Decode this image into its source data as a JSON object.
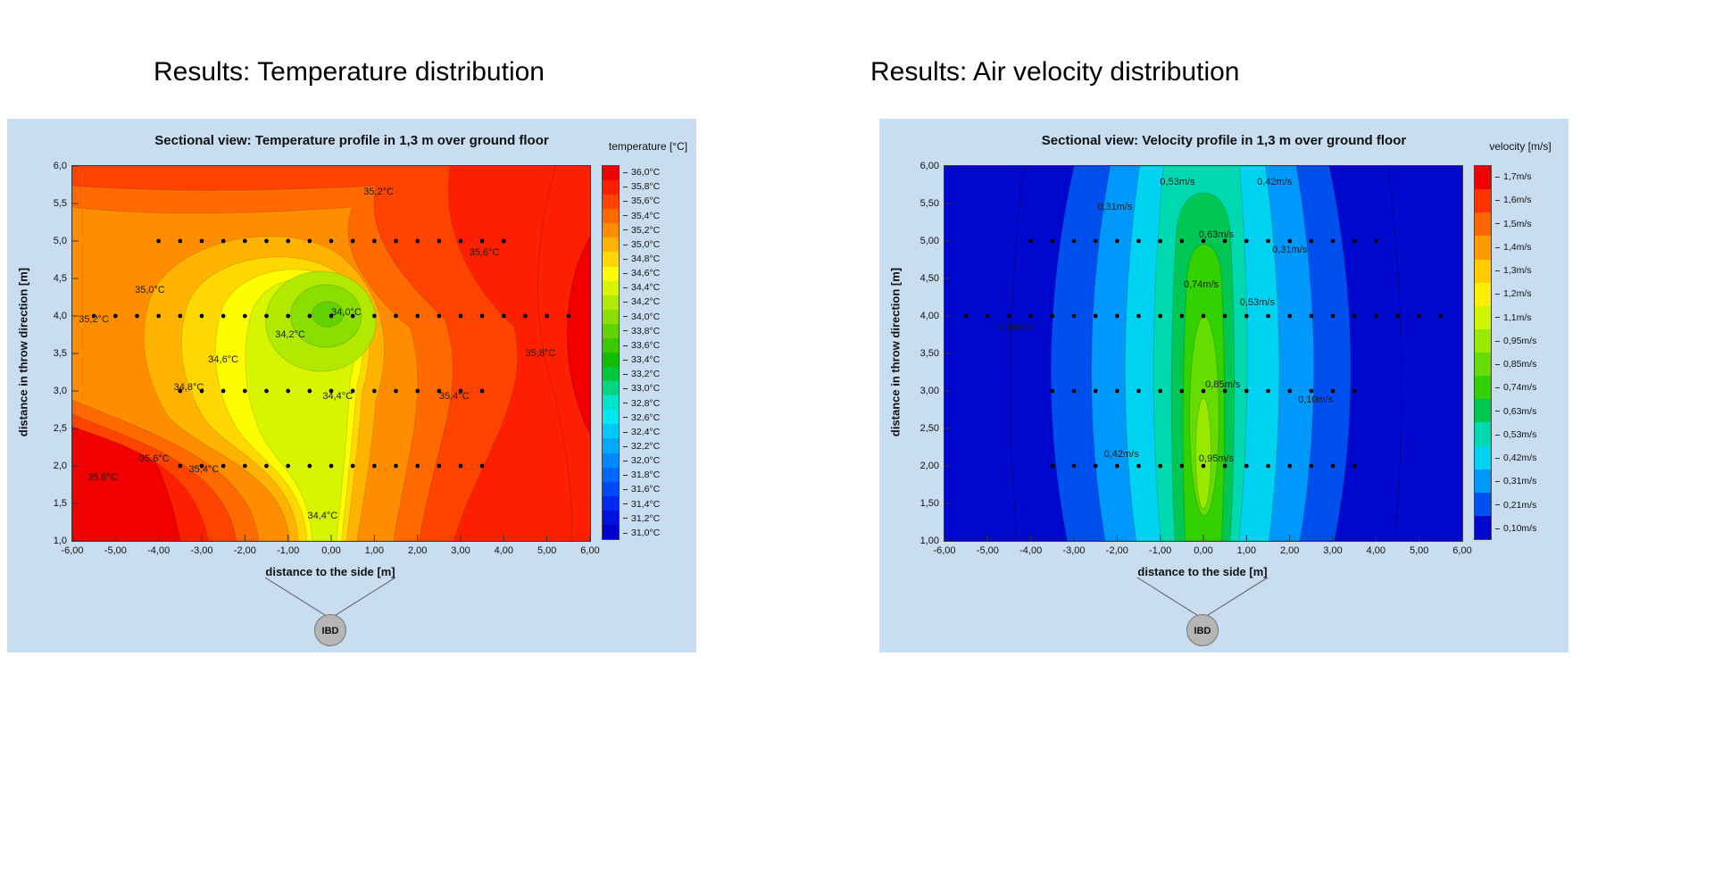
{
  "page": {
    "background": "#ffffff",
    "panel_background": "#c9ddf0"
  },
  "chart_data": [
    {
      "id": "temperature",
      "type": "contour",
      "heading": "Results: Temperature distribution",
      "title": "Sectional view: Temperature profile in 1,3 m over ground floor",
      "xlabel": "distance to the side [m]",
      "ylabel": "distance in throw direction [m]",
      "xlim": [
        -6,
        6
      ],
      "ylim": [
        1,
        6
      ],
      "x_ticks": [
        "-6,00",
        "-5,00",
        "-4,00",
        "-3,00",
        "-2,00",
        "-1,00",
        "0,00",
        "1,00",
        "2,00",
        "3,00",
        "4,00",
        "5,00",
        "6,00"
      ],
      "y_ticks": [
        "6,0",
        "5,5",
        "5,0",
        "4,5",
        "4,0",
        "3,5",
        "3,0",
        "2,5",
        "2,0",
        "1,5",
        "1,0"
      ],
      "ibd_label": "IBD",
      "colorbar": {
        "title": "temperature [°C]",
        "levels": [
          {
            "label": "36,0°C",
            "color": "#f10000"
          },
          {
            "label": "35,8°C",
            "color": "#fe1e00"
          },
          {
            "label": "35,6°C",
            "color": "#fe4300"
          },
          {
            "label": "35,4°C",
            "color": "#fe6900"
          },
          {
            "label": "35,2°C",
            "color": "#fe8e00"
          },
          {
            "label": "35,0°C",
            "color": "#feb300"
          },
          {
            "label": "34,8°C",
            "color": "#fed800"
          },
          {
            "label": "34,6°C",
            "color": "#fdfd00"
          },
          {
            "label": "34,4°C",
            "color": "#d8f500"
          },
          {
            "label": "34,2°C",
            "color": "#b1ea00"
          },
          {
            "label": "34,0°C",
            "color": "#8ade00"
          },
          {
            "label": "33,8°C",
            "color": "#63d300"
          },
          {
            "label": "33,6°C",
            "color": "#3cc800"
          },
          {
            "label": "33,4°C",
            "color": "#15bd00"
          },
          {
            "label": "33,2°C",
            "color": "#00c83e"
          },
          {
            "label": "33,0°C",
            "color": "#00d684"
          },
          {
            "label": "32,8°C",
            "color": "#00e4ca"
          },
          {
            "label": "32,6°C",
            "color": "#00e9f2"
          },
          {
            "label": "32,4°C",
            "color": "#00c9f6"
          },
          {
            "label": "32,2°C",
            "color": "#00a8fa"
          },
          {
            "label": "32,0°C",
            "color": "#0088fe"
          },
          {
            "label": "31,8°C",
            "color": "#0068fe"
          },
          {
            "label": "31,6°C",
            "color": "#0048fa"
          },
          {
            "label": "31,4°C",
            "color": "#0028f0"
          },
          {
            "label": "31,2°C",
            "color": "#0010e0"
          },
          {
            "label": "31,0°C",
            "color": "#0000cd"
          }
        ]
      },
      "contour_labels": [
        {
          "text": "35,2°C",
          "x": 1.1,
          "y": 5.65
        },
        {
          "text": "35,6°C",
          "x": 3.55,
          "y": 4.85
        },
        {
          "text": "35,0°C",
          "x": -4.2,
          "y": 4.35
        },
        {
          "text": "35,2°C",
          "x": -5.5,
          "y": 3.95
        },
        {
          "text": "34,0°C",
          "x": 0.35,
          "y": 4.05
        },
        {
          "text": "34,2°C",
          "x": -0.95,
          "y": 3.75
        },
        {
          "text": "34,6°C",
          "x": -2.5,
          "y": 3.42
        },
        {
          "text": "34,8°C",
          "x": -3.3,
          "y": 3.05
        },
        {
          "text": "34,4°C",
          "x": 0.15,
          "y": 2.93
        },
        {
          "text": "35,4°C",
          "x": 2.85,
          "y": 2.93
        },
        {
          "text": "35,8°C",
          "x": 4.85,
          "y": 3.5
        },
        {
          "text": "35,8°C",
          "x": -5.3,
          "y": 1.85
        },
        {
          "text": "35,6°C",
          "x": -4.1,
          "y": 2.1
        },
        {
          "text": "35,4°C",
          "x": -2.95,
          "y": 1.95
        },
        {
          "text": "34,4°C",
          "x": -0.2,
          "y": 1.33
        }
      ],
      "measurement_points": [
        {
          "y": 5.0,
          "x": [
            -4,
            -3.5,
            -3,
            -2.5,
            -2,
            -1.5,
            -1,
            -0.5,
            0,
            0.5,
            1,
            1.5,
            2,
            2.5,
            3,
            3.5,
            4
          ]
        },
        {
          "y": 4.0,
          "x": [
            -5.5,
            -5,
            -4.5,
            -4,
            -3.5,
            -3,
            -2.5,
            -2,
            -1.5,
            -1,
            -0.5,
            0,
            0.5,
            1,
            1.5,
            2,
            2.5,
            3,
            3.5,
            4,
            4.5,
            5,
            5.5
          ]
        },
        {
          "y": 3.0,
          "x": [
            -3.5,
            -3,
            -2.5,
            -2,
            -1.5,
            -1,
            -0.5,
            0,
            0.5,
            1,
            1.5,
            2,
            2.5,
            3,
            3.5
          ]
        },
        {
          "y": 2.0,
          "x": [
            -3.5,
            -3,
            -2.5,
            -2,
            -1.5,
            -1,
            -0.5,
            0,
            0.5,
            1,
            1.5,
            2,
            2.5,
            3,
            3.5
          ]
        }
      ]
    },
    {
      "id": "velocity",
      "type": "contour",
      "heading": "Results: Air velocity distribution",
      "title": "Sectional view: Velocity profile in 1,3 m over ground floor",
      "xlabel": "distance to the side [m]",
      "ylabel": "distance in throw direction [m]",
      "xlim": [
        -6,
        6
      ],
      "ylim": [
        1,
        6
      ],
      "x_ticks": [
        "-6,00",
        "-5,00",
        "-4,00",
        "-3,00",
        "-2,00",
        "-1,00",
        "0,00",
        "1,00",
        "2,00",
        "3,00",
        "4,00",
        "5,00",
        "6,00"
      ],
      "y_ticks": [
        "6,00",
        "5,50",
        "5,00",
        "4,50",
        "4,00",
        "3,50",
        "3,00",
        "2,50",
        "2,00",
        "1,50",
        "1,00"
      ],
      "ibd_label": "IBD",
      "colorbar": {
        "title": "velocity [m/s]",
        "levels": [
          {
            "label": "1,7m/s",
            "color": "#f10000"
          },
          {
            "label": "1,6m/s",
            "color": "#fe3300"
          },
          {
            "label": "1,5m/s",
            "color": "#fe6600"
          },
          {
            "label": "1,4m/s",
            "color": "#fe9900"
          },
          {
            "label": "1,3m/s",
            "color": "#fecc00"
          },
          {
            "label": "1,2m/s",
            "color": "#feee00"
          },
          {
            "label": "1,1m/s",
            "color": "#ccf500"
          },
          {
            "label": "0,95m/s",
            "color": "#99e800"
          },
          {
            "label": "0,85m/s",
            "color": "#66dd00"
          },
          {
            "label": "0,74m/s",
            "color": "#33d100"
          },
          {
            "label": "0,63m/s",
            "color": "#00c654"
          },
          {
            "label": "0,53m/s",
            "color": "#00d8b0"
          },
          {
            "label": "0,42m/s",
            "color": "#00d2f2"
          },
          {
            "label": "0,31m/s",
            "color": "#0098fa"
          },
          {
            "label": "0,21m/s",
            "color": "#0050f0"
          },
          {
            "label": "0,10m/s",
            "color": "#0008cd"
          }
        ]
      },
      "contour_labels": [
        {
          "text": "0,53m/s",
          "x": -0.6,
          "y": 5.78
        },
        {
          "text": "0,42m/s",
          "x": 1.65,
          "y": 5.78
        },
        {
          "text": "0,31m/s",
          "x": -2.05,
          "y": 5.45
        },
        {
          "text": "0,63m/s",
          "x": 0.3,
          "y": 5.08
        },
        {
          "text": "0,31m/s",
          "x": 2.0,
          "y": 4.88
        },
        {
          "text": "0,74m/s",
          "x": -0.05,
          "y": 4.42
        },
        {
          "text": "0,53m/s",
          "x": 1.25,
          "y": 4.18
        },
        {
          "text": "0,10m/s",
          "x": -4.35,
          "y": 3.85
        },
        {
          "text": "0,85m/s",
          "x": 0.45,
          "y": 3.08
        },
        {
          "text": "0,10m/s",
          "x": 2.6,
          "y": 2.88
        },
        {
          "text": "0,42m/s",
          "x": -1.9,
          "y": 2.15
        },
        {
          "text": "0,95m/s",
          "x": 0.3,
          "y": 2.1
        }
      ],
      "measurement_points": [
        {
          "y": 5.0,
          "x": [
            -4,
            -3.5,
            -3,
            -2.5,
            -2,
            -1.5,
            -1,
            -0.5,
            0,
            0.5,
            1,
            1.5,
            2,
            2.5,
            3,
            3.5,
            4
          ]
        },
        {
          "y": 4.0,
          "x": [
            -5.5,
            -5,
            -4.5,
            -4,
            -3.5,
            -3,
            -2.5,
            -2,
            -1.5,
            -1,
            -0.5,
            0,
            0.5,
            1,
            1.5,
            2,
            2.5,
            3,
            3.5,
            4,
            4.5,
            5,
            5.5
          ]
        },
        {
          "y": 3.0,
          "x": [
            -3.5,
            -3,
            -2.5,
            -2,
            -1.5,
            -1,
            -0.5,
            0,
            0.5,
            1,
            1.5,
            2,
            2.5,
            3,
            3.5
          ]
        },
        {
          "y": 2.0,
          "x": [
            -3.5,
            -3,
            -2.5,
            -2,
            -1.5,
            -1,
            -0.5,
            0,
            0.5,
            1,
            1.5,
            2,
            2.5,
            3,
            3.5
          ]
        }
      ]
    }
  ]
}
